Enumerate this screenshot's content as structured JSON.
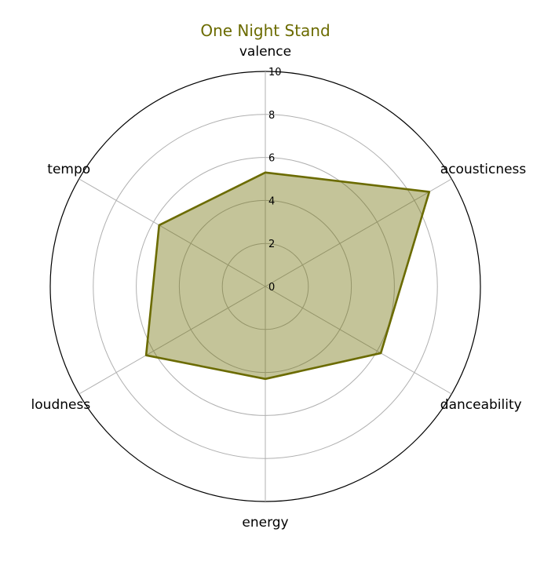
{
  "chart_data": {
    "type": "radar",
    "title": "One Night Stand",
    "axes": [
      "valence",
      "acousticness",
      "danceability",
      "energy",
      "loudness",
      "tempo"
    ],
    "series": [
      {
        "values": [
          5.3,
          8.8,
          6.2,
          4.3,
          6.4,
          5.7
        ],
        "line_color": "#6b6b00",
        "fill_color": "#6b6b00",
        "fill_opacity": 0.4
      }
    ],
    "rlim": [
      0,
      10
    ],
    "rticks": [
      0,
      2,
      4,
      6,
      8,
      10
    ],
    "rtick_labels": [
      "0",
      "2",
      "4",
      "6",
      "8",
      "10"
    ],
    "grid": true,
    "title_color": "#6b6b00"
  }
}
